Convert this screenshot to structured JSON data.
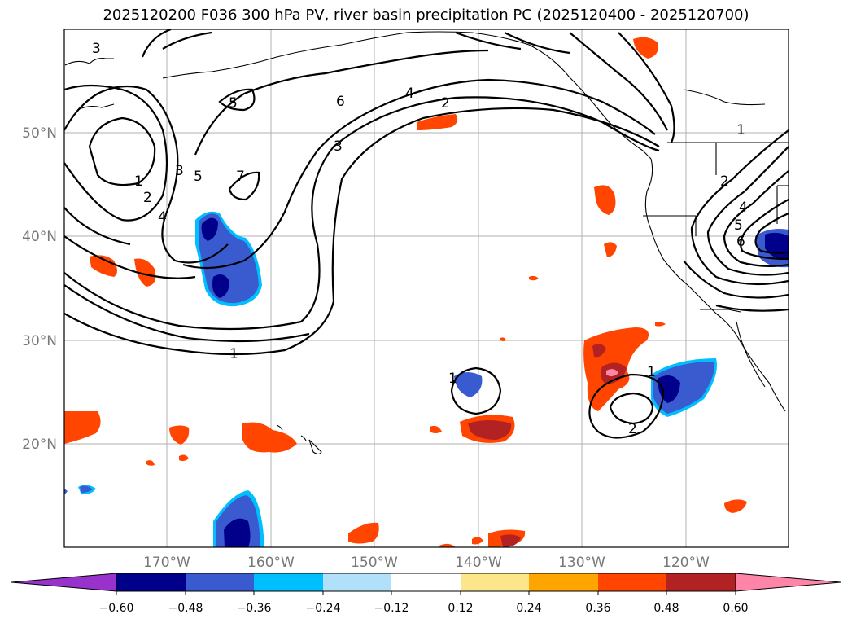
{
  "title": "2025120200 F036 300 hPa PV, river basin precipitation PC (2025120400 - 2025120700)",
  "map": {
    "longitude_labels": [
      "170°W",
      "160°W",
      "150°W",
      "140°W",
      "130°W",
      "120°W"
    ],
    "latitude_labels": [
      "50°N",
      "40°N",
      "30°N",
      "20°N"
    ],
    "contour_labels": [
      "3",
      "5",
      "1",
      "2",
      "3",
      "5",
      "7",
      "4",
      "6",
      "4",
      "2",
      "3",
      "1",
      "1",
      "1",
      "2",
      "1",
      "2",
      "4",
      "5",
      "6"
    ]
  },
  "colorbar": {
    "colors": [
      "#9932cc",
      "#00008b",
      "#3a5bd0",
      "#00bfff",
      "#b0e0fa",
      "#ffffff",
      "#fde68a",
      "#ffa500",
      "#ff4500",
      "#b22222",
      "#ff85a8"
    ],
    "ticks": [
      "−0.60",
      "−0.48",
      "−0.36",
      "−0.24",
      "−0.12",
      "0.12",
      "0.24",
      "0.36",
      "0.48",
      "0.60"
    ]
  }
}
